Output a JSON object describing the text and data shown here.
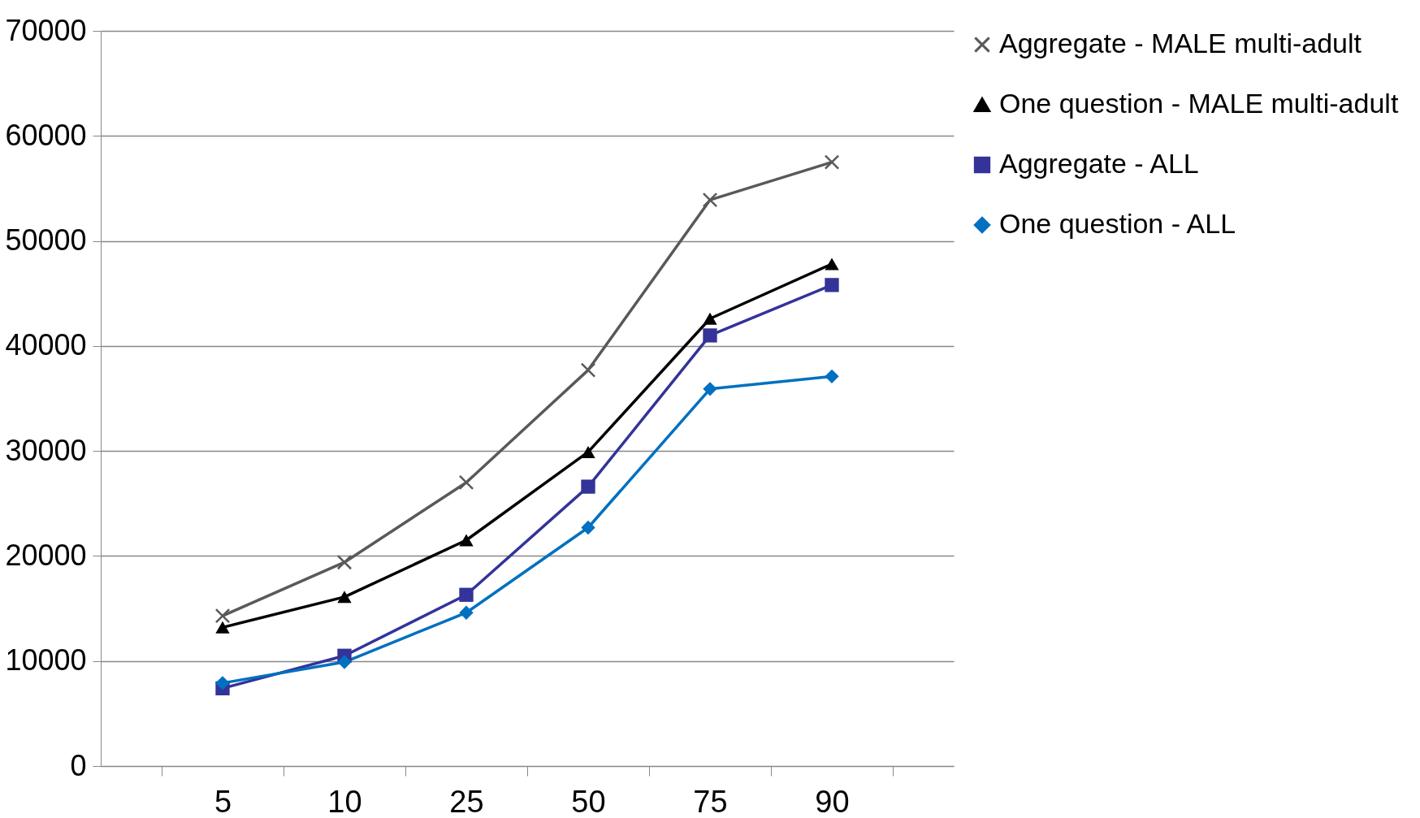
{
  "chart_data": {
    "type": "line",
    "categories": [
      "5",
      "10",
      "25",
      "50",
      "75",
      "90"
    ],
    "ylim": [
      0,
      70000
    ],
    "yticks": [
      0,
      10000,
      20000,
      30000,
      40000,
      50000,
      60000,
      70000
    ],
    "grid": "y",
    "legend": "right",
    "series": [
      {
        "name": "Aggregate - MALE multi-adult",
        "color": "#595959",
        "marker": "cross",
        "values": [
          14300,
          19400,
          27000,
          37700,
          53900,
          57500
        ]
      },
      {
        "name": "One question - MALE multi-adult",
        "color": "#000000",
        "marker": "triangle",
        "values": [
          13200,
          16100,
          21500,
          29900,
          42600,
          47800
        ]
      },
      {
        "name": "Aggregate - ALL",
        "color": "#333399",
        "marker": "square",
        "values": [
          7400,
          10500,
          16300,
          26600,
          41000,
          45800
        ]
      },
      {
        "name": "One question - ALL",
        "color": "#0070c0",
        "marker": "diamond",
        "values": [
          7900,
          9900,
          14600,
          22700,
          35900,
          37100
        ]
      }
    ]
  }
}
